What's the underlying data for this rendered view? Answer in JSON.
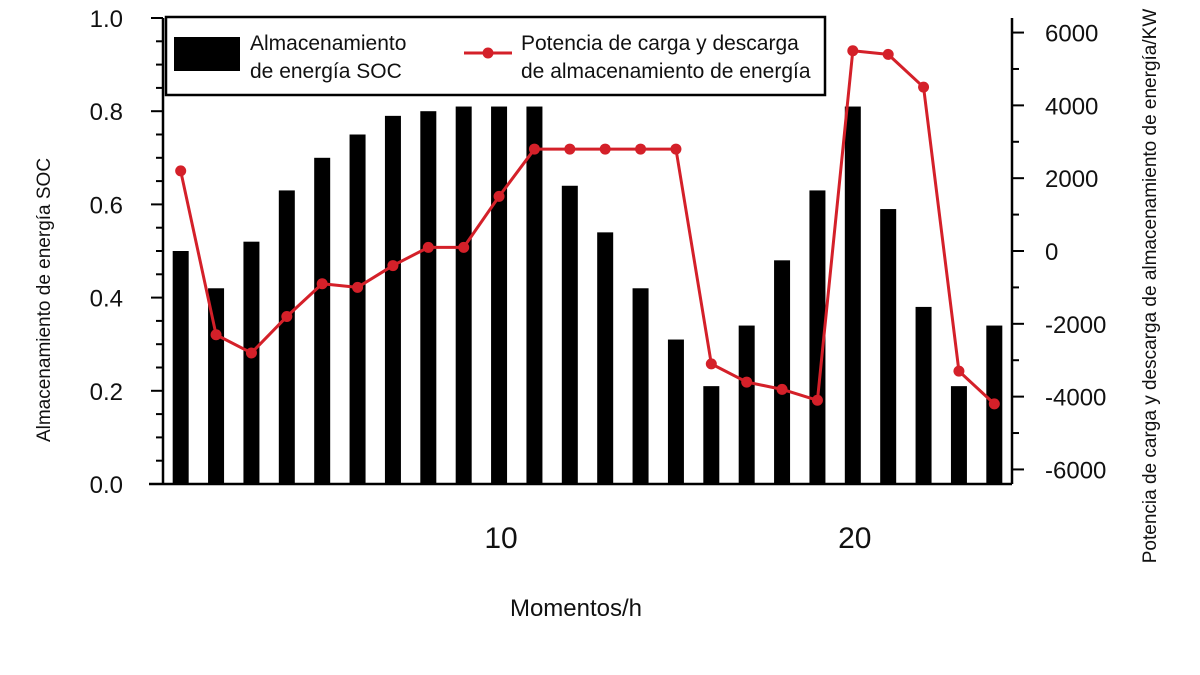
{
  "chart_data": {
    "type": "bar",
    "xlabel": "Momentos/h",
    "ylabel_left": "Almacenamiento de energía SOC",
    "ylabel_right": "Potencia de carga y descarga de almacenamiento de energía/KW",
    "x_ticks": [
      10,
      20
    ],
    "y_left_ticks": [
      "0.0",
      "0.2",
      "0.4",
      "0.6",
      "0.8",
      "1.0"
    ],
    "y_right_ticks": [
      "-6000",
      "-4000",
      "-2000",
      "0",
      "2000",
      "4000",
      "6000"
    ],
    "ylim_left": [
      0,
      1.0
    ],
    "ylim_right": [
      -6400,
      6400
    ],
    "xlim": [
      0.5,
      24.5
    ],
    "legend": {
      "position": "top",
      "bar_label": [
        "Almacenamiento",
        "de energía SOC"
      ],
      "line_label": [
        "Potencia de carga y descarga",
        "de almacenamiento de energía"
      ]
    },
    "x": [
      1,
      2,
      3,
      4,
      5,
      6,
      7,
      8,
      9,
      10,
      11,
      12,
      13,
      14,
      15,
      16,
      17,
      18,
      19,
      20,
      21,
      22,
      23,
      24
    ],
    "series": [
      {
        "name": "Almacenamiento de energía SOC",
        "type": "bar",
        "axis": "left",
        "color": "#000000",
        "values": [
          0.5,
          0.42,
          0.52,
          0.63,
          0.7,
          0.75,
          0.79,
          0.8,
          0.81,
          0.81,
          0.81,
          0.64,
          0.54,
          0.42,
          0.31,
          0.21,
          0.34,
          0.48,
          0.63,
          0.81,
          0.59,
          0.38,
          0.21,
          0.34
        ]
      },
      {
        "name": "Potencia de carga y descarga de almacenamiento de energía",
        "type": "line",
        "axis": "right",
        "color": "#d42029",
        "values": [
          2200,
          -2300,
          -2800,
          -1800,
          -900,
          -1000,
          -400,
          100,
          100,
          1500,
          2800,
          2800,
          2800,
          2800,
          2800,
          -3100,
          -3600,
          -3800,
          -4100,
          5500,
          5400,
          4500,
          -3300,
          -4200
        ]
      }
    ]
  }
}
